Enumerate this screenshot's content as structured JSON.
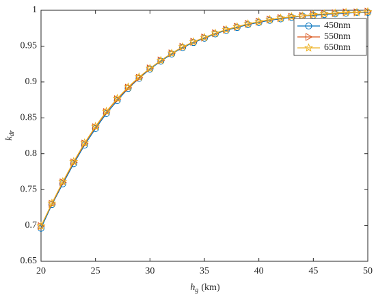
{
  "chart_data": {
    "type": "line",
    "xlabel": {
      "symbol": "h",
      "subscript": "g",
      "unit": "(km)"
    },
    "ylabel": {
      "symbol": "k",
      "subscript": "dr"
    },
    "x": [
      20,
      21,
      22,
      23,
      24,
      25,
      26,
      27,
      28,
      29,
      30,
      31,
      32,
      33,
      34,
      35,
      36,
      37,
      38,
      39,
      40,
      41,
      42,
      43,
      44,
      45,
      46,
      47,
      48,
      49,
      50
    ],
    "series": [
      {
        "name": "450nm",
        "color": "#0072bd",
        "marker": "circle",
        "values": [
          0.696,
          0.729,
          0.758,
          0.786,
          0.812,
          0.835,
          0.856,
          0.874,
          0.891,
          0.905,
          0.918,
          0.929,
          0.939,
          0.948,
          0.955,
          0.961,
          0.967,
          0.972,
          0.976,
          0.98,
          0.983,
          0.986,
          0.988,
          0.99,
          0.992,
          0.993,
          0.994,
          0.995,
          0.996,
          0.997,
          0.997
        ]
      },
      {
        "name": "550nm",
        "color": "#d95319",
        "marker": "triangle-right",
        "values": [
          0.699,
          0.73,
          0.76,
          0.788,
          0.814,
          0.837,
          0.858,
          0.876,
          0.892,
          0.906,
          0.919,
          0.93,
          0.94,
          0.949,
          0.956,
          0.962,
          0.968,
          0.973,
          0.977,
          0.981,
          0.984,
          0.987,
          0.989,
          0.991,
          0.992,
          0.994,
          0.995,
          0.996,
          0.997,
          0.997,
          0.998
        ]
      },
      {
        "name": "650nm",
        "color": "#edb120",
        "marker": "star",
        "values": [
          0.699,
          0.731,
          0.761,
          0.789,
          0.815,
          0.838,
          0.859,
          0.877,
          0.893,
          0.907,
          0.919,
          0.93,
          0.94,
          0.949,
          0.956,
          0.962,
          0.968,
          0.973,
          0.977,
          0.981,
          0.984,
          0.987,
          0.989,
          0.991,
          0.992,
          0.994,
          0.995,
          0.996,
          0.997,
          0.997,
          0.998
        ]
      }
    ],
    "xlim": [
      20,
      50
    ],
    "xticks": [
      20,
      25,
      30,
      35,
      40,
      45,
      50
    ],
    "ylim": [
      0.65,
      1
    ],
    "yticks": [
      0.65,
      0.7,
      0.75,
      0.8,
      0.85,
      0.9,
      0.95,
      1
    ],
    "legend": "top-right",
    "grid": false
  }
}
